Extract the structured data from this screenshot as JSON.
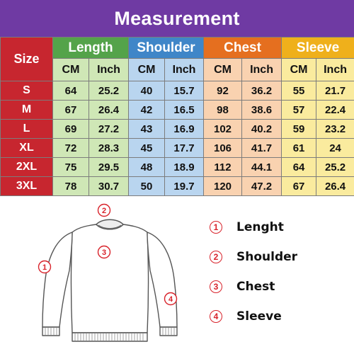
{
  "title": "Measurement",
  "table": {
    "size_header": "Size",
    "groups": [
      {
        "label": "Length",
        "cols": [
          "CM",
          "Inch"
        ]
      },
      {
        "label": "Shoulder",
        "cols": [
          "CM",
          "Inch"
        ]
      },
      {
        "label": "Chest",
        "cols": [
          "CM",
          "Inch"
        ]
      },
      {
        "label": "Sleeve",
        "cols": [
          "CM",
          "Inch"
        ]
      }
    ],
    "rows": [
      [
        "S",
        "64",
        "25.2",
        "40",
        "15.7",
        "92",
        "36.2",
        "55",
        "21.7"
      ],
      [
        "M",
        "67",
        "26.4",
        "42",
        "16.5",
        "98",
        "38.6",
        "57",
        "22.4"
      ],
      [
        "L",
        "69",
        "27.2",
        "43",
        "16.9",
        "102",
        "40.2",
        "59",
        "23.2"
      ],
      [
        "XL",
        "72",
        "28.3",
        "45",
        "17.7",
        "106",
        "41.7",
        "61",
        "24"
      ],
      [
        "2XL",
        "75",
        "29.5",
        "48",
        "18.9",
        "112",
        "44.1",
        "64",
        "25.2"
      ],
      [
        "3XL",
        "78",
        "30.7",
        "50",
        "19.7",
        "120",
        "47.2",
        "67",
        "26.4"
      ]
    ]
  },
  "diagram": {
    "markers": [
      "1",
      "2",
      "3",
      "4"
    ]
  },
  "legend": [
    {
      "num": "1",
      "label": "Lenght"
    },
    {
      "num": "2",
      "label": "Shoulder"
    },
    {
      "num": "3",
      "label": "Chest"
    },
    {
      "num": "4",
      "label": "Sleeve"
    }
  ],
  "colors": {
    "title_bg": "#6f3aa3",
    "size_bg": "#c7262f",
    "length": "#54a34a",
    "shoulder": "#3f86c8",
    "chest": "#e56f1f",
    "sleeve": "#efb01b",
    "marker": "#d8222a"
  }
}
